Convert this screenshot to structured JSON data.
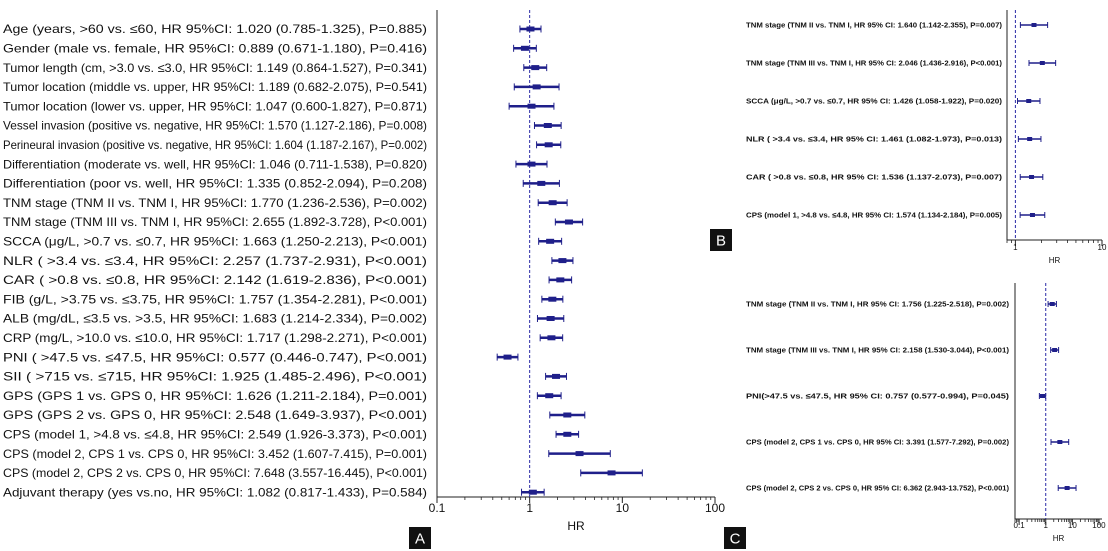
{
  "panel_labels": [
    "A",
    "B",
    "C"
  ],
  "chart_data": [
    {
      "type": "forest",
      "panel": "A",
      "xlabel": "HR",
      "xscale": "log",
      "xlim": [
        0.1,
        100
      ],
      "ticks": [
        0.1,
        1,
        10,
        100
      ],
      "tick_labels": [
        "0.1",
        "1",
        "10",
        "100"
      ],
      "reference_line": 1,
      "rows": [
        {
          "label": "Age (years, >60 vs. ≤60, HR 95%CI: 1.020 (0.785-1.325), P=0.885)",
          "hr": 1.02,
          "lo": 0.785,
          "hi": 1.325
        },
        {
          "label": "Gender (male vs. female, HR 95%CI: 0.889 (0.671-1.180), P=0.416)",
          "hr": 0.889,
          "lo": 0.671,
          "hi": 1.18
        },
        {
          "label": "Tumor length (cm, >3.0 vs. ≤3.0, HR 95%CI: 1.149 (0.864-1.527), P=0.341)",
          "hr": 1.149,
          "lo": 0.864,
          "hi": 1.527
        },
        {
          "label": "Tumor location (middle vs. upper, HR 95%CI: 1.189 (0.682-2.075), P=0.541)",
          "hr": 1.189,
          "lo": 0.682,
          "hi": 2.075
        },
        {
          "label": "Tumor location (lower vs. upper, HR 95%CI: 1.047 (0.600-1.827), P=0.871)",
          "hr": 1.047,
          "lo": 0.6,
          "hi": 1.827
        },
        {
          "label": "Vessel invasion (positive vs. negative, HR 95%CI: 1.570 (1.127-2.186), P=0.008)",
          "hr": 1.57,
          "lo": 1.127,
          "hi": 2.186
        },
        {
          "label": "Perineural invasion (positive vs. negative, HR 95%CI: 1.604 (1.187-2.167), P=0.002)",
          "hr": 1.604,
          "lo": 1.187,
          "hi": 2.167
        },
        {
          "label": "Differentiation (moderate vs. well, HR 95%CI: 1.046 (0.711-1.538), P=0.820)",
          "hr": 1.046,
          "lo": 0.711,
          "hi": 1.538
        },
        {
          "label": "Differentiation (poor vs. well, HR 95%CI: 1.335 (0.852-2.094), P=0.208)",
          "hr": 1.335,
          "lo": 0.852,
          "hi": 2.094
        },
        {
          "label": "TNM stage (TNM II vs. TNM I, HR 95%CI: 1.770 (1.236-2.536), P=0.002)",
          "hr": 1.77,
          "lo": 1.236,
          "hi": 2.536
        },
        {
          "label": "TNM stage (TNM III vs. TNM I, HR 95%CI: 2.655 (1.892-3.728), P<0.001)",
          "hr": 2.655,
          "lo": 1.892,
          "hi": 3.728
        },
        {
          "label": "SCCA (μg/L, >0.7 vs. ≤0.7, HR 95%CI: 1.663 (1.250-2.213), P<0.001)",
          "hr": 1.663,
          "lo": 1.25,
          "hi": 2.213
        },
        {
          "label": "NLR ( >3.4 vs. ≤3.4, HR 95%CI: 2.257 (1.737-2.931), P<0.001)",
          "hr": 2.257,
          "lo": 1.737,
          "hi": 2.931
        },
        {
          "label": "CAR ( >0.8 vs. ≤0.8, HR 95%CI: 2.142 (1.619-2.836), P<0.001)",
          "hr": 2.142,
          "lo": 1.619,
          "hi": 2.836
        },
        {
          "label": "FIB (g/L,  >3.75 vs. ≤3.75, HR 95%CI: 1.757 (1.354-2.281), P<0.001)",
          "hr": 1.757,
          "lo": 1.354,
          "hi": 2.281
        },
        {
          "label": "ALB (mg/dL,  ≤3.5 vs. >3.5, HR 95%CI: 1.683 (1.214-2.334), P=0.002)",
          "hr": 1.683,
          "lo": 1.214,
          "hi": 2.334
        },
        {
          "label": "CRP (mg/L,  >10.0 vs. ≤10.0, HR 95%CI: 1.717 (1.298-2.271), P<0.001)",
          "hr": 1.717,
          "lo": 1.298,
          "hi": 2.271
        },
        {
          "label": "PNI ( >47.5 vs. ≤47.5, HR 95%CI: 0.577 (0.446-0.747), P<0.001)",
          "hr": 0.577,
          "lo": 0.446,
          "hi": 0.747
        },
        {
          "label": "SII ( >715 vs. ≤715, HR 95%CI: 1.925 (1.485-2.496), P<0.001)",
          "hr": 1.925,
          "lo": 1.485,
          "hi": 2.496
        },
        {
          "label": "GPS (GPS 1 vs. GPS 0, HR 95%CI: 1.626 (1.211-2.184), P=0.001)",
          "hr": 1.626,
          "lo": 1.211,
          "hi": 2.184
        },
        {
          "label": "GPS (GPS 2 vs. GPS 0, HR 95%CI: 2.548 (1.649-3.937), P<0.001)",
          "hr": 2.548,
          "lo": 1.649,
          "hi": 3.937
        },
        {
          "label": "CPS (model 1,  >4.8 vs. ≤4.8, HR 95%CI: 2.549 (1.926-3.373), P<0.001)",
          "hr": 2.549,
          "lo": 1.926,
          "hi": 3.373
        },
        {
          "label": "CPS (model 2, CPS 1 vs. CPS 0, HR 95%CI: 3.452 (1.607-7.415), P=0.001)",
          "hr": 3.452,
          "lo": 1.607,
          "hi": 7.415
        },
        {
          "label": "CPS (model 2, CPS 2 vs. CPS 0, HR 95%CI: 7.648 (3.557-16.445), P<0.001)",
          "hr": 7.648,
          "lo": 3.557,
          "hi": 16.445
        },
        {
          "label": "Adjuvant therapy (yes vs.no, HR 95%CI: 1.082 (0.817-1.433), P=0.584)",
          "hr": 1.082,
          "lo": 0.817,
          "hi": 1.433
        }
      ]
    },
    {
      "type": "forest",
      "panel": "B",
      "xlabel": "HR",
      "xscale": "log",
      "xlim": [
        0.8,
        10
      ],
      "ticks": [
        1,
        10
      ],
      "tick_labels": [
        "1",
        "10"
      ],
      "reference_line": 1,
      "rows": [
        {
          "label": "TNM stage (TNM II vs. TNM I, HR 95% CI: 1.640 (1.142-2.355), P=0.007)",
          "hr": 1.64,
          "lo": 1.142,
          "hi": 2.355
        },
        {
          "label": "TNM stage (TNM III vs. TNM I, HR 95% CI: 2.046 (1.436-2.916), P<0.001)",
          "hr": 2.046,
          "lo": 1.436,
          "hi": 2.916
        },
        {
          "label": "SCCA (μg/L, >0.7 vs. ≤0.7, HR 95% CI: 1.426 (1.058-1.922), P=0.020)",
          "hr": 1.426,
          "lo": 1.058,
          "hi": 1.922
        },
        {
          "label": "NLR ( >3.4 vs. ≤3.4, HR 95% CI: 1.461 (1.082-1.973), P=0.013)",
          "hr": 1.461,
          "lo": 1.082,
          "hi": 1.973
        },
        {
          "label": "CAR ( >0.8 vs. ≤0.8, HR 95% CI: 1.536 (1.137-2.073), P=0.007)",
          "hr": 1.536,
          "lo": 1.137,
          "hi": 2.073
        },
        {
          "label": "CPS (model 1,  >4.8 vs. ≤4.8, HR 95% CI: 1.574 (1.134-2.184), P=0.005)",
          "hr": 1.574,
          "lo": 1.134,
          "hi": 2.184
        }
      ]
    },
    {
      "type": "forest",
      "panel": "C",
      "xlabel": "HR",
      "xscale": "log",
      "xlim": [
        0.07,
        130
      ],
      "ticks": [
        0.1,
        1,
        10,
        100
      ],
      "tick_labels": [
        "0.1",
        "1",
        "10",
        "100"
      ],
      "reference_line": 1,
      "rows": [
        {
          "label": "TNM stage (TNM II vs. TNM I, HR 95% CI: 1.756 (1.225-2.518), P=0.002)",
          "hr": 1.756,
          "lo": 1.225,
          "hi": 2.518
        },
        {
          "label": "TNM stage (TNM III vs. TNM I, HR 95% CI: 2.158 (1.530-3.044), P<0.001)",
          "hr": 2.158,
          "lo": 1.53,
          "hi": 3.044
        },
        {
          "label": "PNI(>47.5 vs. ≤47.5, HR 95% CI: 0.757 (0.577-0.994), P=0.045)",
          "hr": 0.757,
          "lo": 0.577,
          "hi": 0.994
        },
        {
          "label": "CPS (model 2, CPS 1 vs. CPS 0, HR 95% CI: 3.391 (1.577-7.292), P=0.002)",
          "hr": 3.391,
          "lo": 1.577,
          "hi": 7.292
        },
        {
          "label": "CPS (model 2, CPS 2 vs. CPS 0, HR 95% CI: 6.362 (2.943-13.752), P<0.001)",
          "hr": 6.362,
          "lo": 2.943,
          "hi": 13.752
        }
      ]
    }
  ],
  "colors": {
    "marker": "#1f1f8a",
    "reference_line": "#2a2aa6",
    "axis": "#222222",
    "label_box": "#111111"
  }
}
